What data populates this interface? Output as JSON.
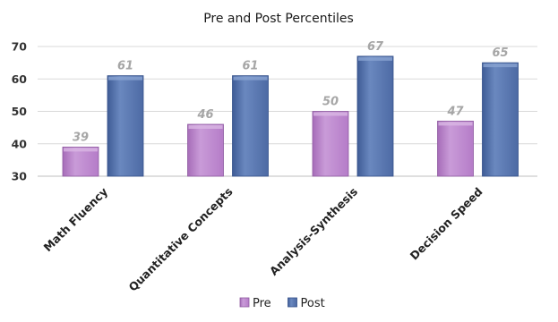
{
  "chart_data": {
    "type": "bar",
    "title": "Pre and Post Percentiles",
    "xlabel": "",
    "ylabel": "",
    "categories": [
      "Math Fluency",
      "Quantitative Concepts",
      "Analysis-Synthesis",
      "Decision Speed"
    ],
    "series": [
      {
        "name": "Pre",
        "values": [
          39,
          46,
          50,
          47
        ],
        "color": "#c08ad0"
      },
      {
        "name": "Post",
        "values": [
          61,
          61,
          67,
          65
        ],
        "color": "#5a78b0"
      }
    ],
    "ylim": [
      30,
      70
    ],
    "yticks": [
      "30",
      "40",
      "50",
      "60",
      "70"
    ],
    "grid": true,
    "data_labels": true,
    "legend_position": "bottom"
  }
}
